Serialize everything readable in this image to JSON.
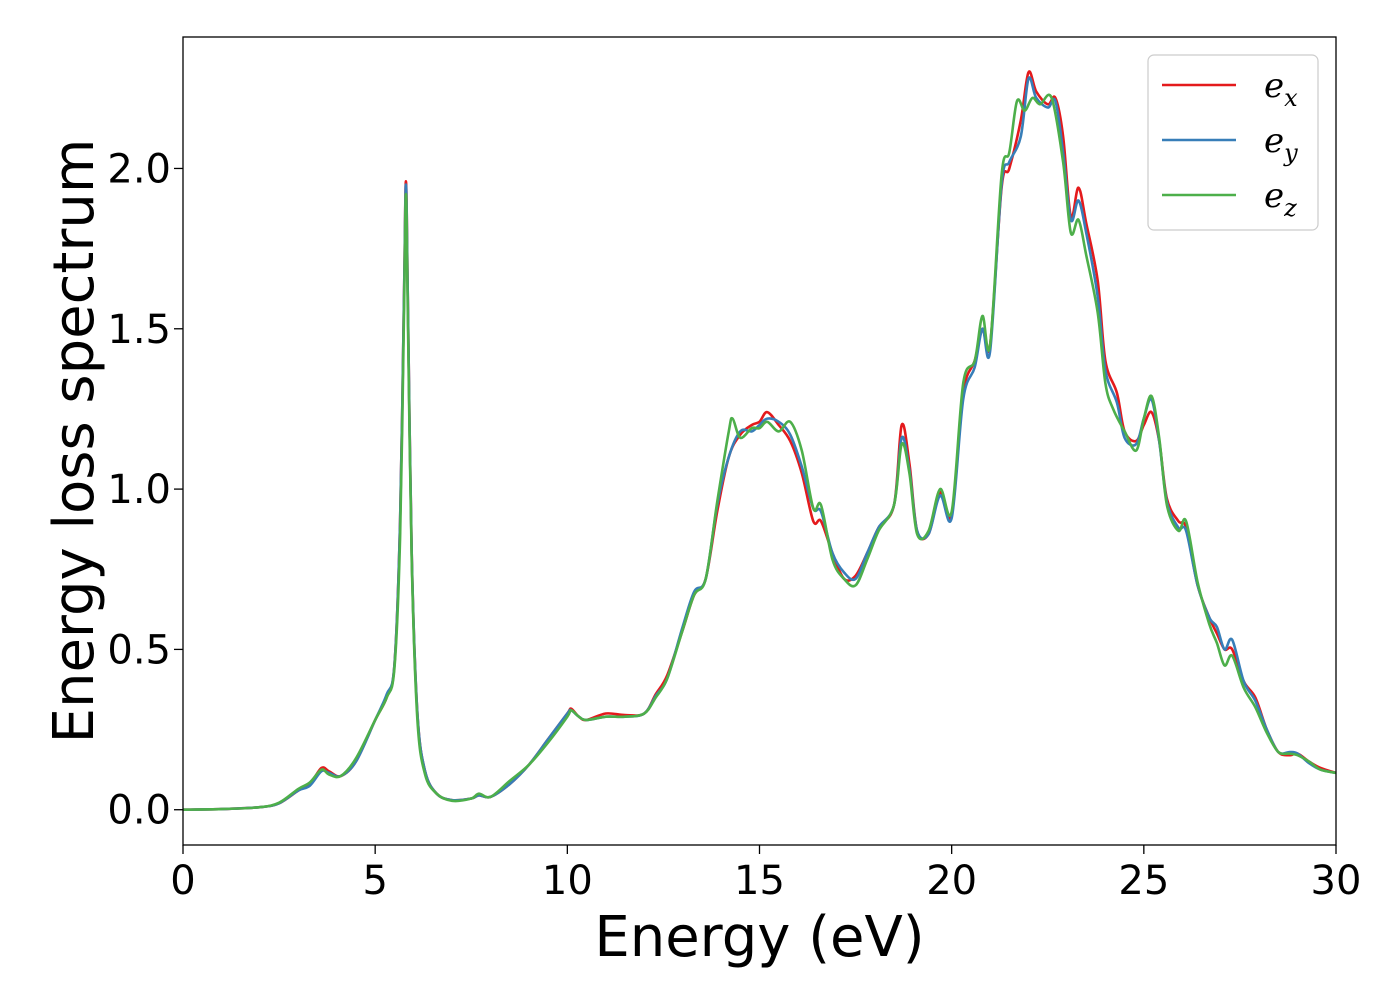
{
  "chart_data": {
    "type": "line",
    "title": "",
    "xlabel": "Energy (eV)",
    "ylabel": "Energy loss spectrum",
    "xlim": [
      0,
      30
    ],
    "ylim": [
      -0.11,
      2.41
    ],
    "xticks": [
      0,
      5,
      10,
      15,
      20,
      25,
      30
    ],
    "xtick_labels": [
      "0",
      "5",
      "10",
      "15",
      "20",
      "25",
      "30"
    ],
    "yticks": [
      0.0,
      0.5,
      1.0,
      1.5,
      2.0
    ],
    "ytick_labels": [
      "0.0",
      "0.5",
      "1.0",
      "1.5",
      "2.0"
    ],
    "grid": false,
    "legend_position": "top-right",
    "series": [
      {
        "name": "e_x",
        "label_base": "e",
        "label_sub": "x",
        "color": "#e41a1c",
        "points": [
          [
            0,
            0
          ],
          [
            1,
            0.002
          ],
          [
            2,
            0.008
          ],
          [
            2.5,
            0.02
          ],
          [
            3,
            0.06
          ],
          [
            3.3,
            0.08
          ],
          [
            3.6,
            0.13
          ],
          [
            3.8,
            0.12
          ],
          [
            4.1,
            0.105
          ],
          [
            4.5,
            0.15
          ],
          [
            5,
            0.28
          ],
          [
            5.3,
            0.35
          ],
          [
            5.5,
            0.45
          ],
          [
            5.65,
            0.9
          ],
          [
            5.75,
            1.6
          ],
          [
            5.8,
            1.96
          ],
          [
            5.85,
            1.6
          ],
          [
            5.95,
            0.8
          ],
          [
            6.1,
            0.3
          ],
          [
            6.3,
            0.12
          ],
          [
            6.6,
            0.05
          ],
          [
            7,
            0.03
          ],
          [
            7.5,
            0.035
          ],
          [
            7.7,
            0.045
          ],
          [
            8,
            0.04
          ],
          [
            8.5,
            0.08
          ],
          [
            9,
            0.14
          ],
          [
            9.5,
            0.22
          ],
          [
            10,
            0.3
          ],
          [
            10.1,
            0.315
          ],
          [
            10.3,
            0.29
          ],
          [
            10.5,
            0.28
          ],
          [
            11,
            0.3
          ],
          [
            11.5,
            0.295
          ],
          [
            12,
            0.3
          ],
          [
            12.3,
            0.36
          ],
          [
            12.6,
            0.42
          ],
          [
            13,
            0.56
          ],
          [
            13.3,
            0.67
          ],
          [
            13.6,
            0.72
          ],
          [
            13.9,
            0.93
          ],
          [
            14.2,
            1.1
          ],
          [
            14.5,
            1.17
          ],
          [
            14.8,
            1.2
          ],
          [
            15,
            1.21
          ],
          [
            15.2,
            1.24
          ],
          [
            15.5,
            1.2
          ],
          [
            15.8,
            1.15
          ],
          [
            16.1,
            1.05
          ],
          [
            16.4,
            0.9
          ],
          [
            16.6,
            0.9
          ],
          [
            16.9,
            0.8
          ],
          [
            17.2,
            0.72
          ],
          [
            17.5,
            0.73
          ],
          [
            17.8,
            0.8
          ],
          [
            18.1,
            0.88
          ],
          [
            18.5,
            0.95
          ],
          [
            18.7,
            1.2
          ],
          [
            18.9,
            1.08
          ],
          [
            19.1,
            0.87
          ],
          [
            19.4,
            0.86
          ],
          [
            19.7,
            0.99
          ],
          [
            20,
            0.92
          ],
          [
            20.3,
            1.3
          ],
          [
            20.6,
            1.4
          ],
          [
            20.8,
            1.5
          ],
          [
            21,
            1.45
          ],
          [
            21.3,
            1.94
          ],
          [
            21.5,
            2.0
          ],
          [
            21.8,
            2.15
          ],
          [
            22,
            2.3
          ],
          [
            22.2,
            2.24
          ],
          [
            22.5,
            2.2
          ],
          [
            22.7,
            2.22
          ],
          [
            22.9,
            2.1
          ],
          [
            23.1,
            1.85
          ],
          [
            23.3,
            1.94
          ],
          [
            23.5,
            1.83
          ],
          [
            23.8,
            1.65
          ],
          [
            24,
            1.4
          ],
          [
            24.3,
            1.3
          ],
          [
            24.5,
            1.18
          ],
          [
            24.8,
            1.15
          ],
          [
            25,
            1.2
          ],
          [
            25.2,
            1.24
          ],
          [
            25.4,
            1.15
          ],
          [
            25.6,
            0.97
          ],
          [
            25.9,
            0.9
          ],
          [
            26.1,
            0.88
          ],
          [
            26.4,
            0.7
          ],
          [
            26.7,
            0.6
          ],
          [
            26.9,
            0.55
          ],
          [
            27.1,
            0.5
          ],
          [
            27.3,
            0.5
          ],
          [
            27.6,
            0.4
          ],
          [
            27.9,
            0.35
          ],
          [
            28.2,
            0.25
          ],
          [
            28.5,
            0.18
          ],
          [
            28.8,
            0.17
          ],
          [
            29,
            0.175
          ],
          [
            29.3,
            0.15
          ],
          [
            29.6,
            0.13
          ],
          [
            30,
            0.115
          ]
        ]
      },
      {
        "name": "e_y",
        "label_base": "e",
        "label_sub": "y",
        "color": "#377eb8",
        "points": [
          [
            0,
            0
          ],
          [
            1,
            0.002
          ],
          [
            2,
            0.008
          ],
          [
            2.5,
            0.02
          ],
          [
            3,
            0.06
          ],
          [
            3.3,
            0.075
          ],
          [
            3.6,
            0.12
          ],
          [
            3.8,
            0.115
          ],
          [
            4.1,
            0.105
          ],
          [
            4.5,
            0.15
          ],
          [
            5,
            0.28
          ],
          [
            5.3,
            0.36
          ],
          [
            5.5,
            0.45
          ],
          [
            5.65,
            0.9
          ],
          [
            5.75,
            1.6
          ],
          [
            5.8,
            1.95
          ],
          [
            5.85,
            1.6
          ],
          [
            5.95,
            0.8
          ],
          [
            6.1,
            0.3
          ],
          [
            6.3,
            0.12
          ],
          [
            6.6,
            0.05
          ],
          [
            7,
            0.03
          ],
          [
            7.5,
            0.035
          ],
          [
            7.7,
            0.045
          ],
          [
            8,
            0.04
          ],
          [
            8.5,
            0.08
          ],
          [
            9,
            0.14
          ],
          [
            9.5,
            0.22
          ],
          [
            10,
            0.3
          ],
          [
            10.1,
            0.31
          ],
          [
            10.3,
            0.29
          ],
          [
            10.5,
            0.28
          ],
          [
            11,
            0.29
          ],
          [
            11.5,
            0.29
          ],
          [
            12,
            0.3
          ],
          [
            12.3,
            0.355
          ],
          [
            12.6,
            0.41
          ],
          [
            13,
            0.57
          ],
          [
            13.3,
            0.68
          ],
          [
            13.6,
            0.72
          ],
          [
            13.9,
            0.95
          ],
          [
            14.2,
            1.1
          ],
          [
            14.5,
            1.18
          ],
          [
            14.8,
            1.18
          ],
          [
            15,
            1.2
          ],
          [
            15.2,
            1.22
          ],
          [
            15.5,
            1.21
          ],
          [
            15.8,
            1.17
          ],
          [
            16.1,
            1.07
          ],
          [
            16.4,
            0.94
          ],
          [
            16.6,
            0.93
          ],
          [
            16.9,
            0.8
          ],
          [
            17.2,
            0.74
          ],
          [
            17.5,
            0.72
          ],
          [
            17.8,
            0.8
          ],
          [
            18.1,
            0.88
          ],
          [
            18.5,
            0.95
          ],
          [
            18.7,
            1.16
          ],
          [
            18.9,
            1.06
          ],
          [
            19.1,
            0.87
          ],
          [
            19.4,
            0.86
          ],
          [
            19.7,
            0.98
          ],
          [
            20,
            0.91
          ],
          [
            20.3,
            1.28
          ],
          [
            20.6,
            1.38
          ],
          [
            20.8,
            1.5
          ],
          [
            21,
            1.43
          ],
          [
            21.3,
            1.95
          ],
          [
            21.5,
            2.02
          ],
          [
            21.8,
            2.1
          ],
          [
            22,
            2.28
          ],
          [
            22.2,
            2.22
          ],
          [
            22.5,
            2.19
          ],
          [
            22.7,
            2.21
          ],
          [
            22.9,
            2.05
          ],
          [
            23.1,
            1.84
          ],
          [
            23.3,
            1.9
          ],
          [
            23.5,
            1.8
          ],
          [
            23.8,
            1.6
          ],
          [
            24,
            1.37
          ],
          [
            24.3,
            1.27
          ],
          [
            24.5,
            1.16
          ],
          [
            24.8,
            1.14
          ],
          [
            25,
            1.22
          ],
          [
            25.2,
            1.28
          ],
          [
            25.4,
            1.15
          ],
          [
            25.6,
            0.96
          ],
          [
            25.9,
            0.88
          ],
          [
            26.1,
            0.87
          ],
          [
            26.4,
            0.7
          ],
          [
            26.7,
            0.6
          ],
          [
            26.9,
            0.57
          ],
          [
            27.1,
            0.5
          ],
          [
            27.3,
            0.53
          ],
          [
            27.6,
            0.4
          ],
          [
            27.9,
            0.34
          ],
          [
            28.2,
            0.25
          ],
          [
            28.5,
            0.18
          ],
          [
            28.8,
            0.18
          ],
          [
            29,
            0.175
          ],
          [
            29.3,
            0.145
          ],
          [
            29.6,
            0.125
          ],
          [
            30,
            0.115
          ]
        ]
      },
      {
        "name": "e_z",
        "label_base": "e",
        "label_sub": "z",
        "color": "#4daf4a",
        "points": [
          [
            0,
            0
          ],
          [
            1,
            0.002
          ],
          [
            2,
            0.008
          ],
          [
            2.5,
            0.022
          ],
          [
            3,
            0.065
          ],
          [
            3.3,
            0.085
          ],
          [
            3.6,
            0.125
          ],
          [
            3.8,
            0.11
          ],
          [
            4.1,
            0.105
          ],
          [
            4.5,
            0.16
          ],
          [
            5,
            0.28
          ],
          [
            5.3,
            0.35
          ],
          [
            5.5,
            0.44
          ],
          [
            5.65,
            0.85
          ],
          [
            5.75,
            1.55
          ],
          [
            5.8,
            1.92
          ],
          [
            5.85,
            1.55
          ],
          [
            5.95,
            0.78
          ],
          [
            6.1,
            0.28
          ],
          [
            6.3,
            0.11
          ],
          [
            6.6,
            0.05
          ],
          [
            7,
            0.028
          ],
          [
            7.5,
            0.035
          ],
          [
            7.7,
            0.05
          ],
          [
            8,
            0.04
          ],
          [
            8.5,
            0.09
          ],
          [
            9,
            0.14
          ],
          [
            9.5,
            0.21
          ],
          [
            10,
            0.29
          ],
          [
            10.1,
            0.31
          ],
          [
            10.3,
            0.29
          ],
          [
            10.5,
            0.28
          ],
          [
            11,
            0.29
          ],
          [
            11.5,
            0.29
          ],
          [
            12,
            0.3
          ],
          [
            12.3,
            0.35
          ],
          [
            12.6,
            0.41
          ],
          [
            13,
            0.56
          ],
          [
            13.3,
            0.67
          ],
          [
            13.6,
            0.72
          ],
          [
            13.9,
            0.96
          ],
          [
            14.2,
            1.18
          ],
          [
            14.3,
            1.22
          ],
          [
            14.5,
            1.16
          ],
          [
            14.8,
            1.19
          ],
          [
            15,
            1.19
          ],
          [
            15.2,
            1.21
          ],
          [
            15.5,
            1.18
          ],
          [
            15.8,
            1.21
          ],
          [
            16.1,
            1.12
          ],
          [
            16.4,
            0.94
          ],
          [
            16.6,
            0.95
          ],
          [
            16.9,
            0.78
          ],
          [
            17.2,
            0.72
          ],
          [
            17.5,
            0.7
          ],
          [
            17.8,
            0.78
          ],
          [
            18.1,
            0.87
          ],
          [
            18.5,
            0.95
          ],
          [
            18.7,
            1.14
          ],
          [
            18.9,
            1.05
          ],
          [
            19.1,
            0.86
          ],
          [
            19.4,
            0.87
          ],
          [
            19.7,
            1.0
          ],
          [
            20,
            0.93
          ],
          [
            20.3,
            1.33
          ],
          [
            20.6,
            1.4
          ],
          [
            20.8,
            1.54
          ],
          [
            21,
            1.45
          ],
          [
            21.3,
            1.98
          ],
          [
            21.5,
            2.05
          ],
          [
            21.7,
            2.21
          ],
          [
            21.9,
            2.18
          ],
          [
            22.1,
            2.22
          ],
          [
            22.3,
            2.2
          ],
          [
            22.6,
            2.22
          ],
          [
            22.9,
            2.02
          ],
          [
            23.1,
            1.8
          ],
          [
            23.3,
            1.84
          ],
          [
            23.5,
            1.73
          ],
          [
            23.8,
            1.55
          ],
          [
            24,
            1.33
          ],
          [
            24.2,
            1.25
          ],
          [
            24.5,
            1.18
          ],
          [
            24.8,
            1.12
          ],
          [
            25,
            1.22
          ],
          [
            25.2,
            1.29
          ],
          [
            25.4,
            1.16
          ],
          [
            25.6,
            0.95
          ],
          [
            25.9,
            0.87
          ],
          [
            26.1,
            0.9
          ],
          [
            26.4,
            0.71
          ],
          [
            26.7,
            0.58
          ],
          [
            26.9,
            0.52
          ],
          [
            27.1,
            0.45
          ],
          [
            27.3,
            0.48
          ],
          [
            27.6,
            0.38
          ],
          [
            27.9,
            0.32
          ],
          [
            28.2,
            0.24
          ],
          [
            28.5,
            0.18
          ],
          [
            28.8,
            0.175
          ],
          [
            29,
            0.17
          ],
          [
            29.3,
            0.15
          ],
          [
            29.6,
            0.125
          ],
          [
            30,
            0.115
          ]
        ]
      }
    ]
  }
}
